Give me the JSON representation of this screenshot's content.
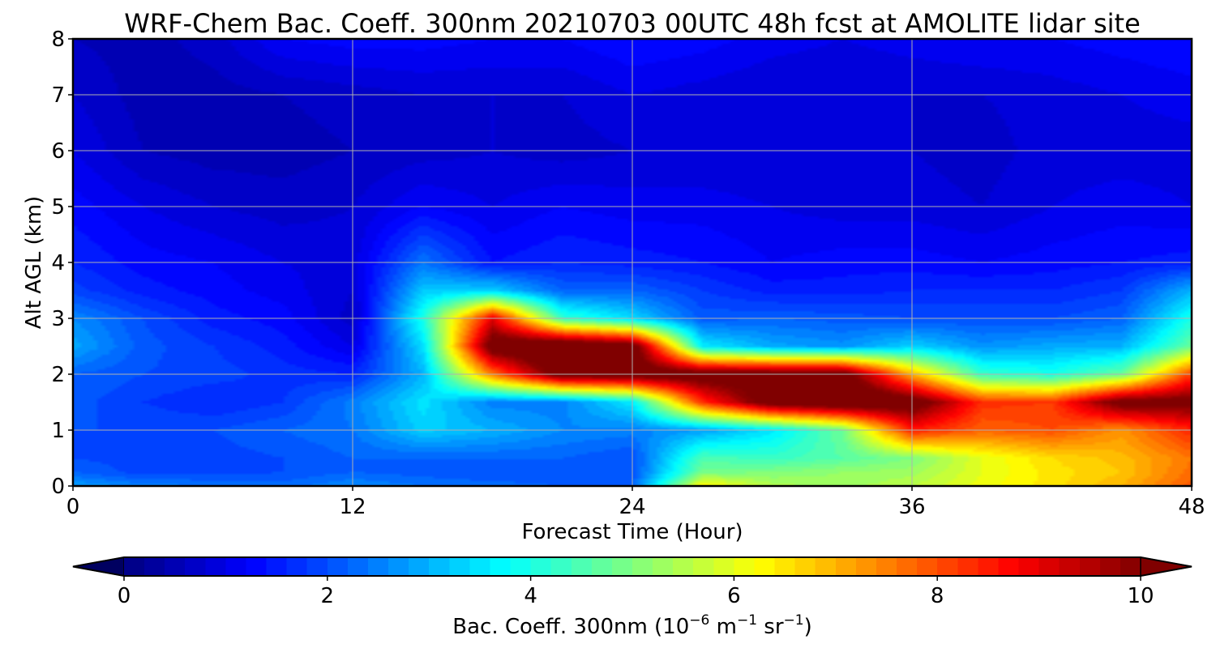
{
  "chart_data": {
    "type": "heatmap",
    "title": "WRF-Chem Bac. Coeff. 300nm  20210703 00UTC 48h fcst at AMOLITE lidar site",
    "xlabel": "Forecast Time (Hour)",
    "ylabel": "Alt AGL (km)",
    "xlim": [
      0,
      48
    ],
    "ylim": [
      0,
      8
    ],
    "xticks": [
      "0",
      "12",
      "24",
      "36",
      "48"
    ],
    "yticks": [
      "0",
      "1",
      "2",
      "3",
      "4",
      "5",
      "6",
      "7",
      "8"
    ],
    "grid": true,
    "colormap": "jet",
    "colorbar": {
      "label_main": "Bac. Coeff. 300nm  (10",
      "label_exp1": "−6",
      "label_mid": " m",
      "label_exp2": "−1",
      "label_mid2": " sr",
      "label_exp3": "−1",
      "label_end": ")",
      "range": [
        0,
        10
      ],
      "ticks": [
        "0",
        "2",
        "4",
        "6",
        "8",
        "10"
      ],
      "extend": "both",
      "orientation": "horizontal"
    },
    "x_hours": [
      0,
      3,
      6,
      9,
      12,
      15,
      18,
      21,
      24,
      27,
      30,
      33,
      36,
      39,
      42,
      45,
      48
    ],
    "z_km": [
      0,
      0.25,
      0.5,
      1,
      1.5,
      2,
      2.5,
      3,
      3.5,
      4,
      5,
      6,
      7,
      8
    ],
    "values_by_time": [
      [
        2.8,
        2.2,
        2.0,
        2.0,
        2.1,
        2.2,
        2.9,
        2.6,
        1.9,
        1.6,
        1.3,
        1.0,
        0.8,
        0.6
      ],
      [
        2.5,
        1.9,
        1.9,
        2.0,
        1.8,
        2.0,
        2.1,
        2.0,
        1.5,
        1.3,
        1.0,
        0.6,
        0.5,
        0.5
      ],
      [
        2.4,
        1.9,
        1.9,
        2.0,
        1.6,
        1.9,
        1.8,
        1.5,
        1.3,
        1.2,
        0.8,
        0.5,
        0.5,
        0.7
      ],
      [
        2.3,
        2.0,
        2.0,
        2.2,
        1.8,
        1.7,
        1.5,
        1.3,
        1.1,
        1.0,
        0.7,
        0.5,
        0.6,
        1.2
      ],
      [
        2.6,
        2.2,
        2.2,
        2.4,
        2.5,
        1.6,
        1.0,
        0.7,
        0.8,
        0.9,
        0.8,
        0.6,
        0.7,
        1.3
      ],
      [
        2.4,
        2.1,
        2.2,
        3.3,
        3.5,
        3.0,
        3.4,
        4.0,
        3.2,
        2.4,
        1.2,
        0.7,
        0.8,
        1.3
      ],
      [
        2.3,
        2.0,
        2.2,
        3.0,
        2.5,
        7.6,
        10.6,
        9.0,
        3.3,
        1.4,
        1.0,
        0.8,
        0.8,
        1.2
      ],
      [
        2.2,
        2.0,
        2.2,
        2.6,
        2.5,
        10.6,
        11.2,
        4.3,
        2.2,
        1.6,
        1.2,
        0.7,
        0.8,
        1.2
      ],
      [
        2.2,
        2.0,
        2.0,
        2.5,
        3.6,
        10.6,
        10.6,
        3.4,
        2.2,
        1.5,
        1.1,
        0.8,
        1.0,
        1.4
      ],
      [
        6.4,
        4.9,
        4.5,
        2.8,
        8.3,
        10.6,
        3.6,
        2.1,
        1.8,
        1.4,
        1.1,
        0.8,
        0.9,
        1.3
      ],
      [
        5.5,
        5.0,
        4.3,
        3.5,
        10.6,
        10.6,
        2.9,
        2.2,
        1.5,
        1.2,
        1.0,
        0.8,
        0.8,
        1.1
      ],
      [
        5.3,
        5.2,
        4.6,
        4.8,
        11.0,
        10.6,
        2.7,
        2.1,
        1.5,
        1.3,
        0.9,
        0.8,
        0.8,
        1.0
      ],
      [
        5.6,
        5.3,
        5.0,
        8.5,
        10.6,
        7.0,
        3.3,
        2.0,
        1.6,
        1.3,
        0.9,
        0.8,
        0.8,
        1.1
      ],
      [
        6.1,
        6.0,
        6.0,
        7.8,
        8.3,
        4.3,
        2.7,
        2.0,
        1.6,
        1.2,
        0.8,
        0.7,
        0.8,
        1.2
      ],
      [
        6.5,
        6.5,
        6.6,
        8.0,
        8.2,
        4.0,
        2.9,
        2.0,
        1.6,
        1.3,
        1.0,
        0.9,
        0.9,
        1.2
      ],
      [
        7.0,
        6.8,
        6.9,
        7.3,
        10.4,
        4.8,
        3.0,
        2.2,
        1.8,
        1.4,
        1.1,
        0.9,
        1.0,
        1.3
      ],
      [
        7.9,
        7.7,
        7.6,
        8.4,
        10.3,
        8.2,
        4.8,
        4.0,
        3.0,
        1.5,
        1.0,
        0.9,
        1.1,
        1.4
      ]
    ]
  }
}
